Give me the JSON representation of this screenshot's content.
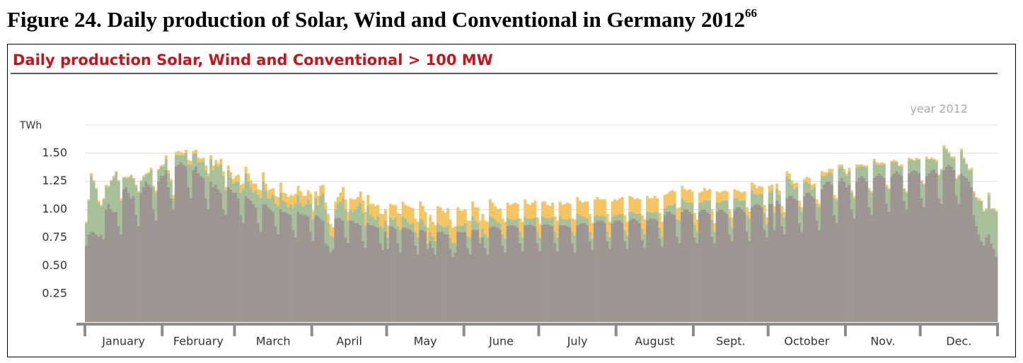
{
  "caption": {
    "text": "Figure 24. Daily production of Solar, Wind and Conventional in Germany 2012",
    "superscript": "66"
  },
  "chart_data": {
    "type": "stacked_bar",
    "title": "Daily production Solar, Wind and Conventional > 100 MW",
    "annotation": "year 2012",
    "ylabel": "TWh",
    "xlim": [
      1,
      367
    ],
    "xticks": [
      {
        "value": 1,
        "label": "January"
      },
      {
        "value": 32,
        "label": "February"
      },
      {
        "value": 61,
        "label": "March"
      },
      {
        "value": 92,
        "label": "April"
      },
      {
        "value": 122,
        "label": "May"
      },
      {
        "value": 153,
        "label": "June"
      },
      {
        "value": 183,
        "label": "July"
      },
      {
        "value": 214,
        "label": "August"
      },
      {
        "value": 245,
        "label": "Sept."
      },
      {
        "value": 275,
        "label": "October"
      },
      {
        "value": 306,
        "label": "Nov."
      },
      {
        "value": 336,
        "label": "Dec."
      }
    ],
    "ylim": [
      0,
      1.75
    ],
    "yticks": [
      0.25,
      {
        "value": 0.5,
        "label": "0.50"
      },
      0.75,
      {
        "value": 1,
        "label": "1.00"
      },
      1.25,
      {
        "value": 1.5,
        "label": "1.50"
      }
    ],
    "grid": true,
    "series": [
      {
        "color": "#9d9592",
        "values": [
          0.68,
          0.78,
          0.8,
          0.8,
          0.78,
          0.76,
          0.78,
          0.74,
          1.0,
          1.05,
          1.0,
          0.98,
          0.98,
          0.85,
          0.78,
          1.18,
          1.2,
          1.15,
          1.1,
          1.12,
          0.95,
          0.85,
          1.15,
          1.2,
          1.25,
          1.22,
          1.2,
          1.0,
          0.9,
          1.25,
          1.3,
          1.3,
          1.35,
          1.2,
          1.1,
          1.0,
          1.38,
          1.4,
          1.42,
          1.4,
          1.38,
          1.2,
          1.1,
          1.35,
          1.38,
          1.32,
          1.3,
          1.28,
          1.1,
          1.0,
          1.25,
          1.2,
          1.22,
          1.18,
          1.15,
          1.0,
          0.95,
          1.2,
          1.18,
          1.15,
          1.15,
          1.1,
          0.95,
          0.88,
          1.12,
          1.1,
          1.08,
          1.05,
          1.02,
          0.88,
          0.8,
          1.05,
          1.05,
          1.02,
          1.0,
          0.98,
          0.85,
          0.78,
          1.0,
          0.98,
          0.98,
          0.96,
          0.95,
          0.82,
          0.75,
          0.98,
          0.96,
          0.95,
          0.95,
          0.94,
          0.8,
          0.72,
          0.95,
          0.94,
          0.92,
          0.9,
          0.7,
          0.68,
          0.62,
          0.65,
          0.92,
          0.93,
          0.92,
          0.9,
          0.75,
          0.7,
          0.9,
          0.9,
          0.88,
          0.88,
          0.86,
          0.72,
          0.66,
          0.88,
          0.86,
          0.86,
          0.85,
          0.84,
          0.7,
          0.64,
          0.8,
          0.65,
          0.85,
          0.85,
          0.83,
          0.7,
          0.62,
          0.84,
          0.84,
          0.83,
          0.82,
          0.8,
          0.68,
          0.6,
          0.82,
          0.82,
          0.8,
          0.65,
          0.72,
          0.66,
          0.6,
          0.8,
          0.8,
          0.8,
          0.78,
          0.78,
          0.65,
          0.58,
          0.62,
          0.8,
          0.8,
          0.8,
          0.8,
          0.66,
          0.6,
          0.82,
          0.82,
          0.82,
          0.7,
          0.75,
          0.66,
          0.6,
          0.84,
          0.85,
          0.85,
          0.84,
          0.82,
          0.68,
          0.62,
          0.85,
          0.86,
          0.86,
          0.85,
          0.84,
          0.7,
          0.63,
          0.86,
          0.86,
          0.87,
          0.86,
          0.85,
          0.7,
          0.63,
          0.86,
          0.87,
          0.87,
          0.86,
          0.85,
          0.7,
          0.63,
          0.86,
          0.86,
          0.86,
          0.85,
          0.84,
          0.7,
          0.62,
          0.86,
          0.87,
          0.88,
          0.88,
          0.86,
          0.72,
          0.64,
          0.88,
          0.9,
          0.9,
          0.9,
          0.88,
          0.72,
          0.65,
          0.88,
          0.9,
          0.9,
          0.9,
          0.88,
          0.72,
          0.65,
          0.9,
          0.92,
          0.92,
          0.9,
          0.88,
          0.73,
          0.66,
          0.9,
          0.92,
          0.92,
          0.92,
          0.9,
          0.74,
          0.67,
          0.95,
          0.98,
          0.98,
          0.96,
          0.95,
          0.76,
          0.7,
          0.98,
          1.0,
          1.0,
          0.98,
          0.96,
          0.75,
          0.7,
          0.98,
          1.0,
          1.0,
          0.98,
          0.96,
          0.76,
          0.7,
          0.98,
          1.0,
          1.0,
          0.98,
          0.96,
          0.78,
          0.72,
          1.0,
          1.02,
          1.02,
          1.0,
          0.98,
          0.8,
          0.72,
          1.02,
          1.04,
          1.05,
          1.04,
          1.02,
          0.82,
          0.75,
          1.05,
          1.05,
          0.82,
          1.08,
          1.05,
          0.85,
          0.78,
          1.1,
          1.12,
          1.12,
          1.1,
          1.08,
          0.88,
          0.8,
          1.12,
          1.15,
          1.15,
          1.12,
          1.1,
          0.9,
          0.82,
          1.18,
          1.22,
          1.25,
          1.25,
          1.22,
          0.95,
          0.88,
          1.25,
          1.28,
          1.25,
          1.2,
          1.22,
          1.0,
          0.92,
          1.25,
          1.28,
          1.3,
          1.28,
          1.25,
          1.02,
          0.95,
          1.28,
          1.3,
          1.32,
          1.3,
          1.28,
          1.05,
          0.98,
          1.3,
          1.32,
          1.34,
          1.32,
          1.3,
          1.08,
          1.0,
          1.32,
          1.34,
          1.35,
          1.34,
          1.32,
          1.1,
          1.02,
          1.3,
          1.32,
          1.35,
          1.36,
          1.32,
          1.1,
          1.05,
          1.35,
          1.38,
          1.4,
          1.38,
          1.35,
          1.12,
          1.05,
          1.32,
          1.3,
          1.28,
          1.25,
          1.2,
          0.95,
          0.85,
          0.78,
          0.72,
          0.68,
          0.75,
          0.78,
          0.7,
          0.65,
          0.58
        ]
      },
      {
        "color": "#a8c09a",
        "values": [
          0.2,
          0.3,
          0.5,
          0.45,
          0.4,
          0.3,
          0.25,
          0.35,
          0.2,
          0.15,
          0.25,
          0.3,
          0.35,
          0.4,
          0.3,
          0.1,
          0.08,
          0.12,
          0.2,
          0.15,
          0.25,
          0.3,
          0.1,
          0.08,
          0.06,
          0.1,
          0.15,
          0.2,
          0.25,
          0.1,
          0.08,
          0.08,
          0.1,
          0.12,
          0.15,
          0.1,
          0.1,
          0.08,
          0.06,
          0.08,
          0.12,
          0.2,
          0.3,
          0.15,
          0.12,
          0.1,
          0.12,
          0.15,
          0.25,
          0.3,
          0.2,
          0.15,
          0.18,
          0.2,
          0.25,
          0.3,
          0.22,
          0.15,
          0.1,
          0.08,
          0.1,
          0.15,
          0.2,
          0.3,
          0.2,
          0.15,
          0.12,
          0.1,
          0.15,
          0.25,
          0.3,
          0.2,
          0.12,
          0.08,
          0.1,
          0.15,
          0.2,
          0.25,
          0.15,
          0.1,
          0.08,
          0.06,
          0.1,
          0.2,
          0.3,
          0.15,
          0.1,
          0.08,
          0.1,
          0.15,
          0.25,
          0.2,
          0.15,
          0.1,
          0.2,
          0.25,
          0.3,
          0.2,
          0.15,
          0.1,
          0.08,
          0.12,
          0.15,
          0.2,
          0.25,
          0.2,
          0.1,
          0.08,
          0.12,
          0.15,
          0.2,
          0.25,
          0.2,
          0.15,
          0.1,
          0.08,
          0.06,
          0.1,
          0.15,
          0.2,
          0.1,
          0.1,
          0.08,
          0.06,
          0.1,
          0.15,
          0.2,
          0.1,
          0.08,
          0.06,
          0.05,
          0.08,
          0.12,
          0.15,
          0.1,
          0.08,
          0.06,
          0.05,
          0.08,
          0.1,
          0.12,
          0.08,
          0.06,
          0.05,
          0.06,
          0.08,
          0.1,
          0.12,
          0.08,
          0.06,
          0.05,
          0.06,
          0.08,
          0.1,
          0.15,
          0.12,
          0.08,
          0.06,
          0.05,
          0.08,
          0.12,
          0.15,
          0.1,
          0.08,
          0.06,
          0.05,
          0.06,
          0.1,
          0.12,
          0.08,
          0.06,
          0.05,
          0.06,
          0.08,
          0.1,
          0.12,
          0.08,
          0.06,
          0.05,
          0.06,
          0.08,
          0.1,
          0.12,
          0.08,
          0.06,
          0.05,
          0.06,
          0.08,
          0.1,
          0.12,
          0.08,
          0.06,
          0.05,
          0.06,
          0.08,
          0.1,
          0.15,
          0.1,
          0.08,
          0.06,
          0.05,
          0.06,
          0.08,
          0.1,
          0.06,
          0.05,
          0.04,
          0.05,
          0.06,
          0.08,
          0.1,
          0.06,
          0.05,
          0.05,
          0.06,
          0.08,
          0.1,
          0.12,
          0.08,
          0.06,
          0.05,
          0.06,
          0.08,
          0.1,
          0.12,
          0.08,
          0.06,
          0.05,
          0.06,
          0.08,
          0.1,
          0.08,
          0.06,
          0.05,
          0.06,
          0.08,
          0.1,
          0.15,
          0.2,
          0.12,
          0.08,
          0.06,
          0.08,
          0.1,
          0.12,
          0.1,
          0.08,
          0.06,
          0.08,
          0.1,
          0.12,
          0.15,
          0.1,
          0.08,
          0.06,
          0.08,
          0.1,
          0.12,
          0.15,
          0.12,
          0.1,
          0.08,
          0.06,
          0.08,
          0.1,
          0.15,
          0.2,
          0.15,
          0.1,
          0.08,
          0.1,
          0.12,
          0.15,
          0.12,
          0.1,
          0.12,
          0.15,
          0.1,
          0.08,
          0.12,
          0.15,
          0.2,
          0.15,
          0.1,
          0.08,
          0.12,
          0.15,
          0.18,
          0.12,
          0.1,
          0.08,
          0.06,
          0.1,
          0.15,
          0.2,
          0.12,
          0.08,
          0.06,
          0.08,
          0.1,
          0.15,
          0.2,
          0.12,
          0.1,
          0.08,
          0.1,
          0.12,
          0.15,
          0.18,
          0.12,
          0.1,
          0.08,
          0.1,
          0.12,
          0.15,
          0.2,
          0.15,
          0.1,
          0.08,
          0.1,
          0.12,
          0.15,
          0.2,
          0.12,
          0.1,
          0.08,
          0.06,
          0.08,
          0.1,
          0.15,
          0.12,
          0.1,
          0.08,
          0.1,
          0.12,
          0.15,
          0.2,
          0.15,
          0.12,
          0.1,
          0.08,
          0.1,
          0.2,
          0.3,
          0.2,
          0.15,
          0.1,
          0.08,
          0.1,
          0.15,
          0.25,
          0.2,
          0.15,
          0.12,
          0.1,
          0.15,
          0.2,
          0.25,
          0.3,
          0.35,
          0.3,
          0.25,
          0.35,
          0.3,
          0.35,
          0.4
        ]
      },
      {
        "color": "#f5c564",
        "values": [
          0.01,
          0.01,
          0.02,
          0.01,
          0.01,
          0.02,
          0.01,
          0.01,
          0.02,
          0.01,
          0.01,
          0.02,
          0.01,
          0.01,
          0.02,
          0.01,
          0.01,
          0.02,
          0.01,
          0.01,
          0.02,
          0.01,
          0.01,
          0.02,
          0.01,
          0.01,
          0.02,
          0.01,
          0.02,
          0.01,
          0.01,
          0.02,
          0.03,
          0.03,
          0.02,
          0.03,
          0.03,
          0.04,
          0.03,
          0.02,
          0.03,
          0.04,
          0.03,
          0.02,
          0.03,
          0.04,
          0.03,
          0.03,
          0.04,
          0.02,
          0.03,
          0.04,
          0.04,
          0.03,
          0.05,
          0.04,
          0.03,
          0.04,
          0.05,
          0.04,
          0.05,
          0.06,
          0.07,
          0.05,
          0.06,
          0.07,
          0.06,
          0.08,
          0.06,
          0.05,
          0.07,
          0.08,
          0.06,
          0.07,
          0.08,
          0.06,
          0.07,
          0.08,
          0.09,
          0.07,
          0.08,
          0.09,
          0.08,
          0.1,
          0.09,
          0.08,
          0.1,
          0.09,
          0.07,
          0.08,
          0.09,
          0.07,
          0.06,
          0.08,
          0.09,
          0.07,
          0.06,
          0.08,
          0.1,
          0.09,
          0.07,
          0.06,
          0.08,
          0.1,
          0.09,
          0.08,
          0.1,
          0.11,
          0.09,
          0.08,
          0.1,
          0.11,
          0.12,
          0.1,
          0.09,
          0.11,
          0.12,
          0.1,
          0.11,
          0.12,
          0.1,
          0.11,
          0.12,
          0.13,
          0.11,
          0.12,
          0.14,
          0.13,
          0.12,
          0.14,
          0.15,
          0.13,
          0.12,
          0.14,
          0.15,
          0.13,
          0.12,
          0.14,
          0.15,
          0.13,
          0.14,
          0.15,
          0.16,
          0.14,
          0.13,
          0.15,
          0.16,
          0.14,
          0.15,
          0.16,
          0.14,
          0.13,
          0.12,
          0.14,
          0.15,
          0.13,
          0.12,
          0.14,
          0.15,
          0.13,
          0.12,
          0.14,
          0.15,
          0.13,
          0.12,
          0.11,
          0.13,
          0.14,
          0.15,
          0.13,
          0.12,
          0.14,
          0.15,
          0.13,
          0.12,
          0.14,
          0.15,
          0.13,
          0.12,
          0.14,
          0.15,
          0.13,
          0.12,
          0.13,
          0.14,
          0.12,
          0.11,
          0.13,
          0.14,
          0.15,
          0.13,
          0.12,
          0.14,
          0.15,
          0.13,
          0.12,
          0.14,
          0.15,
          0.13,
          0.12,
          0.14,
          0.15,
          0.16,
          0.14,
          0.15,
          0.16,
          0.15,
          0.14,
          0.15,
          0.16,
          0.14,
          0.13,
          0.14,
          0.13,
          0.14,
          0.15,
          0.13,
          0.12,
          0.14,
          0.13,
          0.12,
          0.14,
          0.13,
          0.12,
          0.13,
          0.14,
          0.12,
          0.13,
          0.14,
          0.12,
          0.13,
          0.14,
          0.12,
          0.11,
          0.12,
          0.13,
          0.11,
          0.1,
          0.12,
          0.11,
          0.1,
          0.11,
          0.12,
          0.1,
          0.1,
          0.11,
          0.09,
          0.1,
          0.11,
          0.09,
          0.1,
          0.09,
          0.08,
          0.1,
          0.09,
          0.08,
          0.09,
          0.08,
          0.07,
          0.09,
          0.08,
          0.07,
          0.08,
          0.07,
          0.08,
          0.07,
          0.06,
          0.07,
          0.08,
          0.06,
          0.07,
          0.06,
          0.07,
          0.06,
          0.06,
          0.05,
          0.06,
          0.05,
          0.04,
          0.06,
          0.05,
          0.04,
          0.05,
          0.04,
          0.05,
          0.04,
          0.05,
          0.04,
          0.03,
          0.04,
          0.05,
          0.04,
          0.03,
          0.04,
          0.03,
          0.04,
          0.03,
          0.02,
          0.03,
          0.04,
          0.03,
          0.02,
          0.03,
          0.02,
          0.03,
          0.02,
          0.03,
          0.02,
          0.02,
          0.03,
          0.02,
          0.02,
          0.01,
          0.02,
          0.02,
          0.01,
          0.02,
          0.02,
          0.01,
          0.02,
          0.01,
          0.02,
          0.01,
          0.01,
          0.02,
          0.01,
          0.01,
          0.02,
          0.01,
          0.01,
          0.02,
          0.01,
          0.01,
          0.02,
          0.01,
          0.01,
          0.01,
          0.02,
          0.01,
          0.01,
          0.01,
          0.02,
          0.01,
          0.01,
          0.02,
          0.01,
          0.01,
          0.01,
          0.02,
          0.01,
          0.01,
          0.02,
          0.01,
          0.01,
          0.01,
          0.02,
          0.01,
          0.01,
          0.02,
          0.01,
          0.01,
          0.01,
          0.02,
          0.01,
          0.01,
          0.01
        ]
      }
    ]
  }
}
